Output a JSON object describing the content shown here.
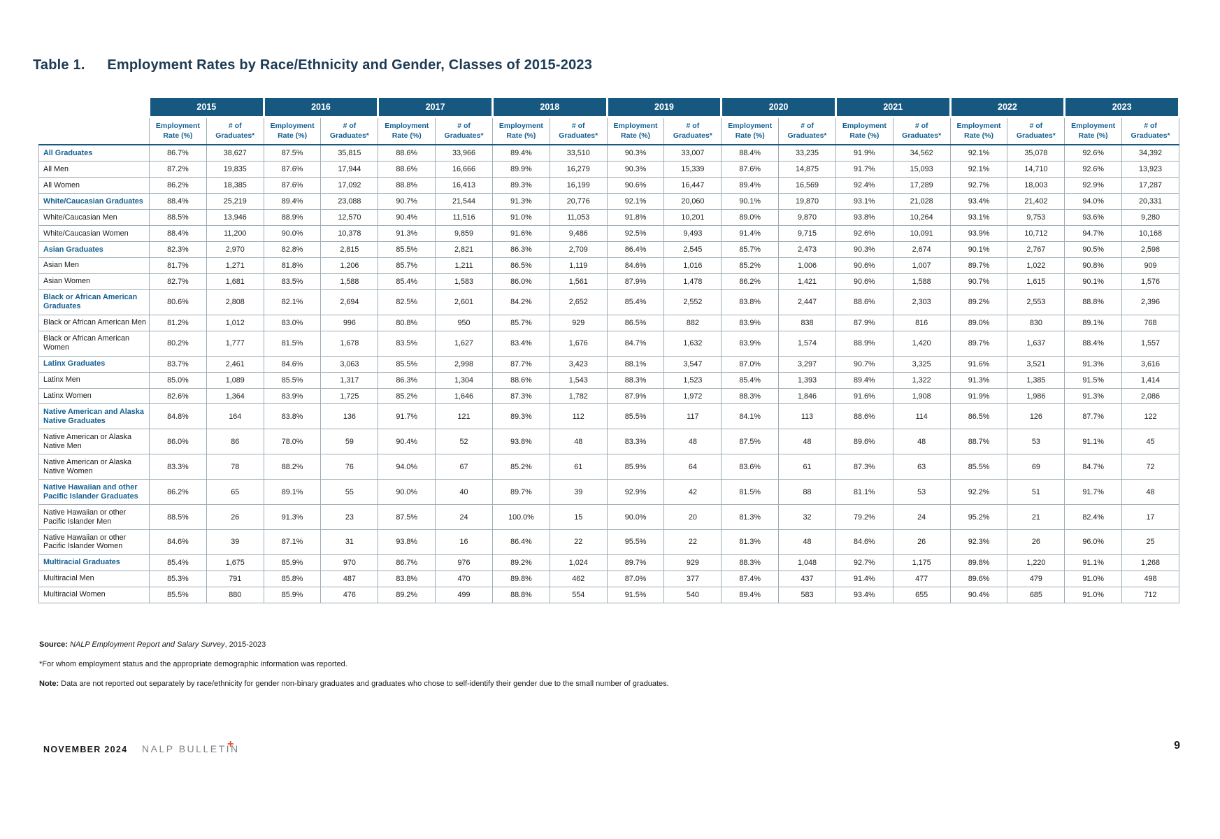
{
  "title": {
    "label": "Table 1.",
    "text": "Employment Rates by Race/Ethnicity and Gender, Classes of 2015-2023"
  },
  "table": {
    "years": [
      "2015",
      "2016",
      "2017",
      "2018",
      "2019",
      "2020",
      "2021",
      "2022",
      "2023"
    ],
    "subheaders": [
      "Employment Rate (%)",
      "# of Graduates*"
    ],
    "rows": [
      {
        "label": "All Graduates",
        "category": true,
        "cells": [
          "86.7%",
          "38,627",
          "87.5%",
          "35,815",
          "88.6%",
          "33,966",
          "89.4%",
          "33,510",
          "90.3%",
          "33,007",
          "88.4%",
          "33,235",
          "91.9%",
          "34,562",
          "92.1%",
          "35,078",
          "92.6%",
          "34,392"
        ]
      },
      {
        "label": "All Men",
        "category": false,
        "cells": [
          "87.2%",
          "19,835",
          "87.6%",
          "17,944",
          "88.6%",
          "16,666",
          "89.9%",
          "16,279",
          "90.3%",
          "15,339",
          "87.6%",
          "14,875",
          "91.7%",
          "15,093",
          "92.1%",
          "14,710",
          "92.6%",
          "13,923"
        ]
      },
      {
        "label": "All Women",
        "category": false,
        "cells": [
          "86.2%",
          "18,385",
          "87.6%",
          "17,092",
          "88.8%",
          "16,413",
          "89.3%",
          "16,199",
          "90.6%",
          "16,447",
          "89.4%",
          "16,569",
          "92.4%",
          "17,289",
          "92.7%",
          "18,003",
          "92.9%",
          "17,287"
        ]
      },
      {
        "label": "White/Caucasian Graduates",
        "category": true,
        "cells": [
          "88.4%",
          "25,219",
          "89.4%",
          "23,088",
          "90.7%",
          "21,544",
          "91.3%",
          "20,776",
          "92.1%",
          "20,060",
          "90.1%",
          "19,870",
          "93.1%",
          "21,028",
          "93.4%",
          "21,402",
          "94.0%",
          "20,331"
        ]
      },
      {
        "label": "White/Caucasian Men",
        "category": false,
        "cells": [
          "88.5%",
          "13,946",
          "88.9%",
          "12,570",
          "90.4%",
          "11,516",
          "91.0%",
          "11,053",
          "91.8%",
          "10,201",
          "89.0%",
          "9,870",
          "93.8%",
          "10,264",
          "93.1%",
          "9,753",
          "93.6%",
          "9,280"
        ]
      },
      {
        "label": "White/Caucasian Women",
        "category": false,
        "cells": [
          "88.4%",
          "11,200",
          "90.0%",
          "10,378",
          "91.3%",
          "9,859",
          "91.6%",
          "9,486",
          "92.5%",
          "9,493",
          "91.4%",
          "9,715",
          "92.6%",
          "10,091",
          "93.9%",
          "10,712",
          "94.7%",
          "10,168"
        ]
      },
      {
        "label": "Asian Graduates",
        "category": true,
        "cells": [
          "82.3%",
          "2,970",
          "82.8%",
          "2,815",
          "85.5%",
          "2,821",
          "86.3%",
          "2,709",
          "86.4%",
          "2,545",
          "85.7%",
          "2,473",
          "90.3%",
          "2,674",
          "90.1%",
          "2,767",
          "90.5%",
          "2,598"
        ]
      },
      {
        "label": "Asian Men",
        "category": false,
        "cells": [
          "81.7%",
          "1,271",
          "81.8%",
          "1,206",
          "85.7%",
          "1,211",
          "86.5%",
          "1,119",
          "84.6%",
          "1,016",
          "85.2%",
          "1,006",
          "90.6%",
          "1,007",
          "89.7%",
          "1,022",
          "90.8%",
          "909"
        ]
      },
      {
        "label": "Asian Women",
        "category": false,
        "cells": [
          "82.7%",
          "1,681",
          "83.5%",
          "1,588",
          "85.4%",
          "1,583",
          "86.0%",
          "1,561",
          "87.9%",
          "1,478",
          "86.2%",
          "1,421",
          "90.6%",
          "1,588",
          "90.7%",
          "1,615",
          "90.1%",
          "1,576"
        ]
      },
      {
        "label": "Black or African American Graduates",
        "category": true,
        "cells": [
          "80.6%",
          "2,808",
          "82.1%",
          "2,694",
          "82.5%",
          "2,601",
          "84.2%",
          "2,652",
          "85.4%",
          "2,552",
          "83.8%",
          "2,447",
          "88.6%",
          "2,303",
          "89.2%",
          "2,553",
          "88.8%",
          "2,396"
        ]
      },
      {
        "label": "Black or African American Men",
        "category": false,
        "cells": [
          "81.2%",
          "1,012",
          "83.0%",
          "996",
          "80.8%",
          "950",
          "85.7%",
          "929",
          "86.5%",
          "882",
          "83.9%",
          "838",
          "87.9%",
          "816",
          "89.0%",
          "830",
          "89.1%",
          "768"
        ]
      },
      {
        "label": "Black or African American Women",
        "category": false,
        "cells": [
          "80.2%",
          "1,777",
          "81.5%",
          "1,678",
          "83.5%",
          "1,627",
          "83.4%",
          "1,676",
          "84.7%",
          "1,632",
          "83.9%",
          "1,574",
          "88.9%",
          "1,420",
          "89.7%",
          "1,637",
          "88.4%",
          "1,557"
        ]
      },
      {
        "label": "Latinx Graduates",
        "category": true,
        "cells": [
          "83.7%",
          "2,461",
          "84.6%",
          "3,063",
          "85.5%",
          "2,998",
          "87.7%",
          "3,423",
          "88.1%",
          "3,547",
          "87.0%",
          "3,297",
          "90.7%",
          "3,325",
          "91.6%",
          "3,521",
          "91.3%",
          "3,616"
        ]
      },
      {
        "label": "Latinx Men",
        "category": false,
        "cells": [
          "85.0%",
          "1,089",
          "85.5%",
          "1,317",
          "86.3%",
          "1,304",
          "88.6%",
          "1,543",
          "88.3%",
          "1,523",
          "85.4%",
          "1,393",
          "89.4%",
          "1,322",
          "91.3%",
          "1,385",
          "91.5%",
          "1,414"
        ]
      },
      {
        "label": "Latinx Women",
        "category": false,
        "cells": [
          "82.6%",
          "1,364",
          "83.9%",
          "1,725",
          "85.2%",
          "1,646",
          "87.3%",
          "1,782",
          "87.9%",
          "1,972",
          "88.3%",
          "1,846",
          "91.6%",
          "1,908",
          "91.9%",
          "1,986",
          "91.3%",
          "2,086"
        ]
      },
      {
        "label": "Native American and Alaska Native Graduates",
        "category": true,
        "cells": [
          "84.8%",
          "164",
          "83.8%",
          "136",
          "91.7%",
          "121",
          "89.3%",
          "112",
          "85.5%",
          "117",
          "84.1%",
          "113",
          "88.6%",
          "114",
          "86.5%",
          "126",
          "87.7%",
          "122"
        ]
      },
      {
        "label": "Native American or Alaska Native Men",
        "category": false,
        "cells": [
          "86.0%",
          "86",
          "78.0%",
          "59",
          "90.4%",
          "52",
          "93.8%",
          "48",
          "83.3%",
          "48",
          "87.5%",
          "48",
          "89.6%",
          "48",
          "88.7%",
          "53",
          "91.1%",
          "45"
        ]
      },
      {
        "label": "Native American or Alaska Native Women",
        "category": false,
        "cells": [
          "83.3%",
          "78",
          "88.2%",
          "76",
          "94.0%",
          "67",
          "85.2%",
          "61",
          "85.9%",
          "64",
          "83.6%",
          "61",
          "87.3%",
          "63",
          "85.5%",
          "69",
          "84.7%",
          "72"
        ]
      },
      {
        "label": "Native Hawaiian and other Pacific Islander Graduates",
        "category": true,
        "cells": [
          "86.2%",
          "65",
          "89.1%",
          "55",
          "90.0%",
          "40",
          "89.7%",
          "39",
          "92.9%",
          "42",
          "81.5%",
          "88",
          "81.1%",
          "53",
          "92.2%",
          "51",
          "91.7%",
          "48"
        ]
      },
      {
        "label": "Native Hawaiian or other Pacific Islander Men",
        "category": false,
        "cells": [
          "88.5%",
          "26",
          "91.3%",
          "23",
          "87.5%",
          "24",
          "100.0%",
          "15",
          "90.0%",
          "20",
          "81.3%",
          "32",
          "79.2%",
          "24",
          "95.2%",
          "21",
          "82.4%",
          "17"
        ]
      },
      {
        "label": "Native Hawaiian or other Pacific Islander Women",
        "category": false,
        "cells": [
          "84.6%",
          "39",
          "87.1%",
          "31",
          "93.8%",
          "16",
          "86.4%",
          "22",
          "95.5%",
          "22",
          "81.3%",
          "48",
          "84.6%",
          "26",
          "92.3%",
          "26",
          "96.0%",
          "25"
        ]
      },
      {
        "label": "Multiracial Graduates",
        "category": true,
        "cells": [
          "85.4%",
          "1,675",
          "85.9%",
          "970",
          "86.7%",
          "976",
          "89.2%",
          "1,024",
          "89.7%",
          "929",
          "88.3%",
          "1,048",
          "92.7%",
          "1,175",
          "89.8%",
          "1,220",
          "91.1%",
          "1,268"
        ]
      },
      {
        "label": "Multiracial Men",
        "category": false,
        "cells": [
          "85.3%",
          "791",
          "85.8%",
          "487",
          "83.8%",
          "470",
          "89.8%",
          "462",
          "87.0%",
          "377",
          "87.4%",
          "437",
          "91.4%",
          "477",
          "89.6%",
          "479",
          "91.0%",
          "498"
        ]
      },
      {
        "label": "Multiracial Women",
        "category": false,
        "cells": [
          "85.5%",
          "880",
          "85.9%",
          "476",
          "89.2%",
          "499",
          "88.8%",
          "554",
          "91.5%",
          "540",
          "89.4%",
          "583",
          "93.4%",
          "655",
          "90.4%",
          "685",
          "91.0%",
          "712"
        ]
      }
    ]
  },
  "notes": {
    "source_label": "Source:",
    "source_italic": " NALP Employment Report and Salary Survey",
    "source_rest": ", 2015-2023",
    "footnote": "*For whom employment status and the appropriate demographic information was reported.",
    "note_label": "Note:",
    "note_text": " Data are not reported out separately by race/ethnicity for gender non-binary graduates and graduates who chose to self-identify their gender due to the small number of graduates."
  },
  "footer": {
    "date": "NOVEMBER 2024",
    "brand": "NALP BULLETIN",
    "plus": "+",
    "page": "9"
  },
  "colors": {
    "header_bg": "#175881",
    "category_text": "#176090",
    "grid": "#9dadb6",
    "accent_plus": "#e8502a",
    "title_color": "#1d3b55"
  }
}
